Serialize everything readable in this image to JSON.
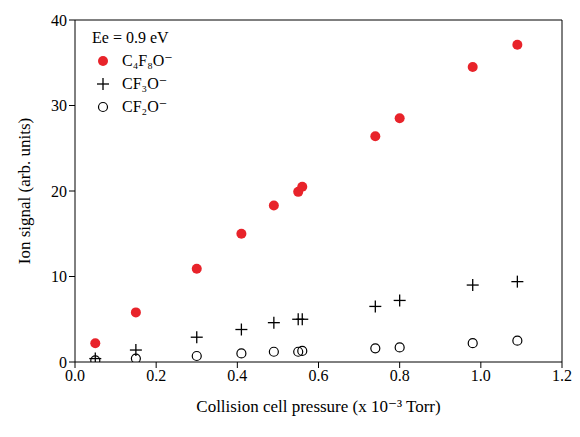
{
  "chart_data": {
    "type": "scatter",
    "annotation": "Ee = 0.9 eV",
    "x_label": "Collision cell pressure (x 10⁻³ Torr)",
    "y_label": "Ion signal (arb. units)",
    "xlim": [
      0,
      1.2
    ],
    "xticks": [
      {
        "value": 0,
        "label": "0.0"
      },
      0.2,
      0.4,
      0.6,
      0.8,
      {
        "value": 1,
        "label": "1.0"
      },
      1.2
    ],
    "ylim": [
      0,
      40
    ],
    "yticks": [
      0,
      10,
      20,
      30,
      40
    ],
    "legend": "upper left",
    "x": [
      0.05,
      0.15,
      0.3,
      0.41,
      0.49,
      0.55,
      0.56,
      0.74,
      0.8,
      0.98,
      1.09
    ],
    "series": [
      {
        "name": "C₄F₈O⁻",
        "color": "#e8232a",
        "marker": "filled_circle",
        "values": [
          2.2,
          5.8,
          10.9,
          15.0,
          18.3,
          19.9,
          20.5,
          26.4,
          28.5,
          34.5,
          37.1
        ]
      },
      {
        "name": "CF₃O⁻",
        "color": "#000000",
        "marker": "plus",
        "values": [
          0.4,
          1.4,
          2.9,
          3.8,
          4.6,
          5.0,
          5.0,
          6.5,
          7.2,
          9.0,
          9.4
        ]
      },
      {
        "name": "CF₂O⁻",
        "color": "#000000",
        "marker": "open_circle",
        "values": [
          0.2,
          0.4,
          0.7,
          1.0,
          1.2,
          1.2,
          1.3,
          1.6,
          1.7,
          2.2,
          2.5
        ]
      }
    ]
  }
}
